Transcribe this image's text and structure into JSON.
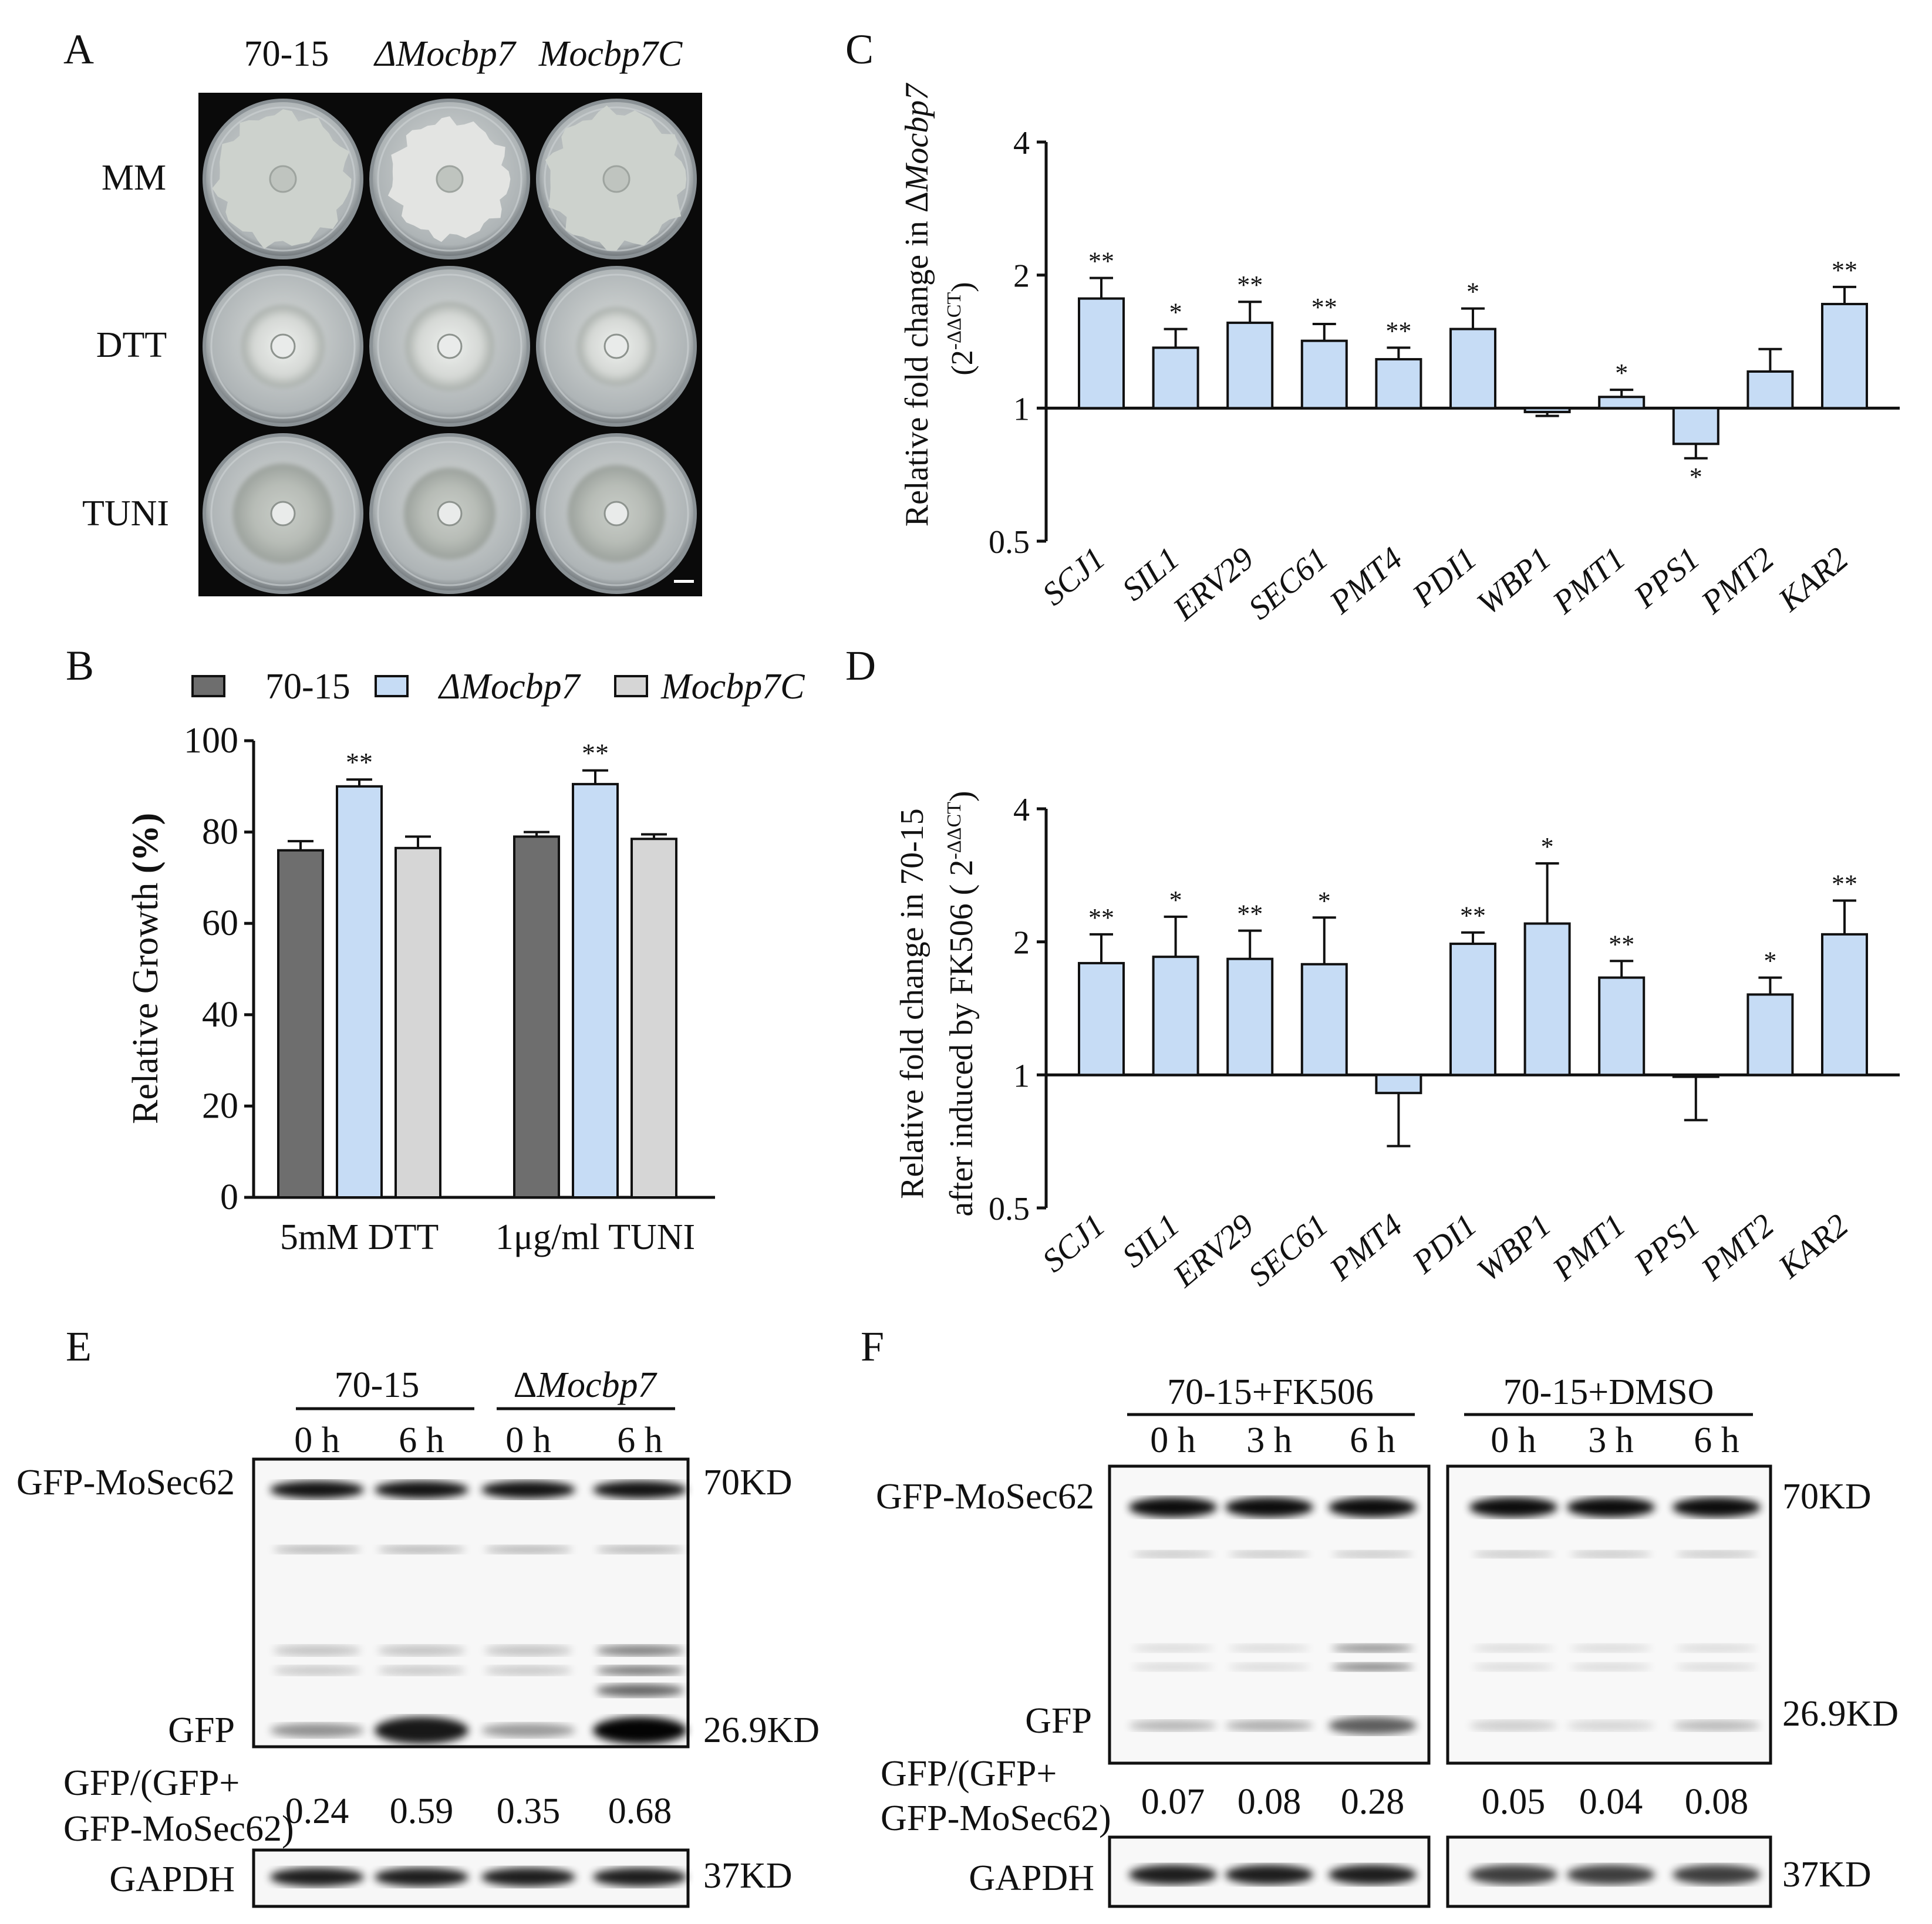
{
  "panels": {
    "A": {
      "letter": "A",
      "columns": [
        "70-15",
        "ΔMocbp7",
        "Mocbp7C"
      ],
      "rows": [
        "MM",
        "DTT",
        "TUNI"
      ]
    },
    "B": {
      "letter": "B"
    },
    "C": {
      "letter": "C"
    },
    "D": {
      "letter": "D"
    },
    "E": {
      "letter": "E",
      "groups": [
        "70-15",
        "ΔMocbp7"
      ],
      "times": [
        "0 h",
        "6 h",
        "0 h",
        "6 h"
      ],
      "band_labels": {
        "top": "GFP-MoSec62",
        "low": "GFP",
        "gapdh": "GAPDH"
      },
      "markers": {
        "top": "70KD",
        "low": "26.9KD",
        "gapdh": "37KD"
      },
      "ratio_label_line1": "GFP/(GFP+",
      "ratio_label_line2": "GFP-MoSec62)",
      "ratios": [
        "0.24",
        "0.59",
        "0.35",
        "0.68"
      ]
    },
    "F": {
      "letter": "F",
      "groups": [
        "70-15+FK506",
        "70-15+DMSO"
      ],
      "times": [
        "0 h",
        "3 h",
        "6 h",
        "0 h",
        "3 h",
        "6 h"
      ],
      "band_labels": {
        "top": "GFP-MoSec62",
        "low": "GFP",
        "gapdh": "GAPDH"
      },
      "markers": {
        "top": "70KD",
        "low": "26.9KD",
        "gapdh": "37KD"
      },
      "ratio_label_line1": "GFP/(GFP+",
      "ratio_label_line2": "GFP-MoSec62)",
      "ratios": [
        "0.07",
        "0.08",
        "0.28",
        "0.05",
        "0.04",
        "0.08"
      ]
    }
  },
  "colors": {
    "wt": "#6e6e6e",
    "mutant": "#c6dcf5",
    "complement": "#d6d6d6",
    "stroke": "#111111"
  },
  "chart_data": [
    {
      "panel": "B",
      "type": "bar",
      "categories": [
        "5mM DTT",
        "1μg/ml TUNI"
      ],
      "series": [
        {
          "name": "70-15",
          "values": [
            76,
            79
          ],
          "errors": [
            2,
            1
          ]
        },
        {
          "name": "ΔMocbp7",
          "values": [
            90,
            90.5
          ],
          "errors": [
            1.5,
            3
          ]
        },
        {
          "name": "Mocbp7C",
          "values": [
            76.5,
            78.5
          ],
          "errors": [
            2.5,
            1
          ]
        }
      ],
      "significance": [
        [
          "",
          "**",
          ""
        ],
        [
          "",
          "**",
          ""
        ]
      ],
      "ylabel_main": "Relative Growth ",
      "ylabel_unit": "(%)",
      "ylim": [
        0,
        100
      ],
      "yticks": [
        "0",
        "20",
        "40",
        "60",
        "80",
        "100"
      ],
      "legend": "top"
    },
    {
      "panel": "C",
      "type": "bar",
      "categories": [
        "SCJ1",
        "SIL1",
        "ERV29",
        "SEC61",
        "PMT4",
        "PDI1",
        "WBP1",
        "PMT1",
        "PPS1",
        "PMT2",
        "KAR2"
      ],
      "values": [
        1.77,
        1.37,
        1.56,
        1.42,
        1.29,
        1.51,
        0.98,
        1.06,
        0.83,
        1.21,
        1.72
      ],
      "error_tips": [
        1.97,
        1.51,
        1.74,
        1.55,
        1.37,
        1.68,
        0.96,
        1.1,
        0.77,
        1.36,
        1.88
      ],
      "significance": [
        "**",
        "*",
        "**",
        "**",
        "**",
        "*",
        "",
        "*",
        "*",
        "",
        "**"
      ],
      "ylabel_line1": "Relative fold change in Δ",
      "ylabel_line1_italic": "Mocbp7",
      "ylabel_line2": "(2",
      "ylabel_exp": "-ΔΔCT",
      "ylabel_close": ")",
      "y_scale": "log2",
      "ylim": [
        0.5,
        4
      ],
      "yticks": [
        "0.5",
        "1",
        "2",
        "4"
      ]
    },
    {
      "panel": "D",
      "type": "bar",
      "categories": [
        "SCJ1",
        "SIL1",
        "ERV29",
        "SEC61",
        "PMT4",
        "PDI1",
        "WBP1",
        "PMT1",
        "PPS1",
        "PMT2",
        "KAR2"
      ],
      "values": [
        1.79,
        1.85,
        1.83,
        1.78,
        0.91,
        1.98,
        2.2,
        1.66,
        0.99,
        1.52,
        2.08
      ],
      "error_tips": [
        2.08,
        2.28,
        2.12,
        2.27,
        0.69,
        2.1,
        3.01,
        1.81,
        0.79,
        1.66,
        2.48
      ],
      "significance": [
        "**",
        "*",
        "**",
        "*",
        "",
        "**",
        "*",
        "**",
        "",
        "*",
        "**"
      ],
      "ylabel_line1": "Relative fold change in 70-15",
      "ylabel_line2": "after induced by FK506 ( 2",
      "ylabel_exp": "-ΔΔCT",
      "ylabel_close": ")",
      "y_scale": "log2",
      "ylim": [
        0.5,
        4
      ],
      "yticks": [
        "0.5",
        "1",
        "2",
        "4"
      ]
    }
  ]
}
